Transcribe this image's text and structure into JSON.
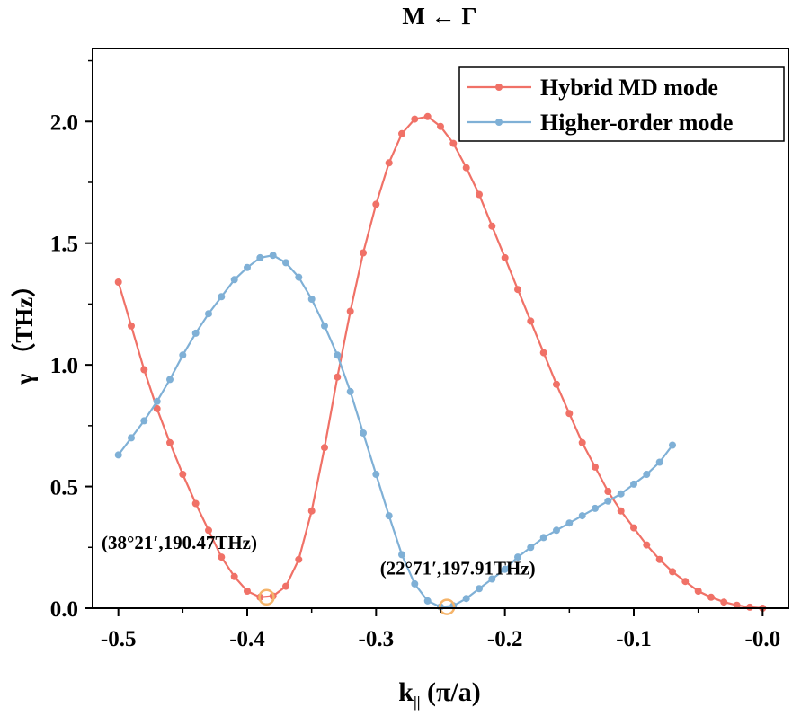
{
  "chart_data": {
    "type": "line",
    "title": "M ← Γ",
    "xlabel_main": "k",
    "xlabel_sub": "||",
    "xlabel_unit": " (π/a)",
    "ylabel": "γ （THz）",
    "xlim": [
      -0.52,
      0.02
    ],
    "ylim": [
      0,
      2.3
    ],
    "x_ticks": [
      -0.5,
      -0.4,
      -0.3,
      -0.2,
      -0.1,
      0.0
    ],
    "x_tick_labels": [
      "-0.5",
      "-0.4",
      "-0.3",
      "-0.2",
      "-0.1",
      "-0.0"
    ],
    "y_ticks": [
      0.0,
      0.5,
      1.0,
      1.5,
      2.0
    ],
    "y_tick_labels": [
      "0.0",
      "0.5",
      "1.0",
      "1.5",
      "2.0"
    ],
    "legend_position": "top-right",
    "series": [
      {
        "name": "Hybrid MD mode",
        "color": "#f07167",
        "x": [
          -0.5,
          -0.49,
          -0.48,
          -0.47,
          -0.46,
          -0.45,
          -0.44,
          -0.43,
          -0.42,
          -0.41,
          -0.4,
          -0.39,
          -0.38,
          -0.37,
          -0.36,
          -0.35,
          -0.34,
          -0.33,
          -0.32,
          -0.31,
          -0.3,
          -0.29,
          -0.28,
          -0.27,
          -0.26,
          -0.25,
          -0.24,
          -0.23,
          -0.22,
          -0.21,
          -0.2,
          -0.19,
          -0.18,
          -0.17,
          -0.16,
          -0.15,
          -0.14,
          -0.13,
          -0.12,
          -0.11,
          -0.1,
          -0.09,
          -0.08,
          -0.07,
          -0.06,
          -0.05,
          -0.04,
          -0.03,
          -0.02,
          -0.01,
          0.0
        ],
        "y": [
          1.34,
          1.16,
          0.98,
          0.82,
          0.68,
          0.55,
          0.43,
          0.32,
          0.21,
          0.13,
          0.07,
          0.045,
          0.05,
          0.09,
          0.2,
          0.4,
          0.66,
          0.95,
          1.22,
          1.46,
          1.66,
          1.83,
          1.95,
          2.01,
          2.02,
          1.98,
          1.91,
          1.81,
          1.7,
          1.57,
          1.44,
          1.31,
          1.18,
          1.05,
          0.92,
          0.8,
          0.68,
          0.58,
          0.48,
          0.4,
          0.33,
          0.26,
          0.2,
          0.15,
          0.11,
          0.07,
          0.045,
          0.025,
          0.012,
          0.004,
          0.0
        ]
      },
      {
        "name": "Higher-order mode",
        "color": "#7fb0d6",
        "x": [
          -0.5,
          -0.49,
          -0.48,
          -0.47,
          -0.46,
          -0.45,
          -0.44,
          -0.43,
          -0.42,
          -0.41,
          -0.4,
          -0.39,
          -0.38,
          -0.37,
          -0.36,
          -0.35,
          -0.34,
          -0.33,
          -0.32,
          -0.31,
          -0.3,
          -0.29,
          -0.28,
          -0.27,
          -0.26,
          -0.25,
          -0.24,
          -0.23,
          -0.22,
          -0.21,
          -0.2,
          -0.19,
          -0.18,
          -0.17,
          -0.16,
          -0.15,
          -0.14,
          -0.13,
          -0.12,
          -0.11,
          -0.1,
          -0.09,
          -0.08,
          -0.07
        ],
        "y": [
          0.63,
          0.7,
          0.77,
          0.85,
          0.94,
          1.04,
          1.13,
          1.21,
          1.28,
          1.35,
          1.4,
          1.44,
          1.45,
          1.42,
          1.36,
          1.27,
          1.16,
          1.04,
          0.89,
          0.72,
          0.55,
          0.38,
          0.22,
          0.1,
          0.03,
          0.005,
          0.01,
          0.04,
          0.08,
          0.12,
          0.16,
          0.21,
          0.25,
          0.29,
          0.32,
          0.35,
          0.38,
          0.41,
          0.44,
          0.47,
          0.51,
          0.55,
          0.6,
          0.67
        ]
      }
    ],
    "annotations": [
      {
        "text": "(38°21′,190.47THz)",
        "x": -0.385,
        "y": 0.045
      },
      {
        "text": "(22°71′,197.91THz)",
        "x": -0.245,
        "y": 0.005
      }
    ],
    "annotation_marker_color": "#f5b46a"
  }
}
